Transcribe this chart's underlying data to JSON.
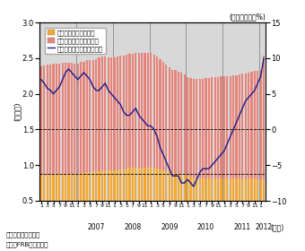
{
  "left_label": "(兆ドル)",
  "right_label": "(前月比年率、%)",
  "xlabel": "(年月)",
  "footnote1": "備考：季節調整値。",
  "footnote2": "資料：FRBから作成。",
  "ylim_left": [
    0.5,
    3.0
  ],
  "ylim_right": [
    -10,
    15
  ],
  "yticks_left": [
    0.5,
    1.0,
    1.5,
    2.0,
    2.5,
    3.0
  ],
  "yticks_right": [
    -10,
    -5,
    0,
    5,
    10,
    15
  ],
  "revolving_color": "#F5A830",
  "non_revolving_color": "#E8837A",
  "line_color": "#1a1a8c",
  "bg_color": "#d8d8d8",
  "legend_labels": [
    "リボルビング（左軸）",
    "非リボルビング（左軸）",
    "合計前月比（年率、右軸）"
  ],
  "start_year": 2006,
  "start_month": 1,
  "revolving": [
    0.87,
    0.87,
    0.87,
    0.87,
    0.88,
    0.88,
    0.88,
    0.88,
    0.88,
    0.88,
    0.88,
    0.88,
    0.88,
    0.89,
    0.89,
    0.9,
    0.9,
    0.91,
    0.91,
    0.92,
    0.93,
    0.93,
    0.93,
    0.93,
    0.93,
    0.93,
    0.94,
    0.94,
    0.95,
    0.96,
    0.96,
    0.97,
    0.97,
    0.97,
    0.97,
    0.97,
    0.97,
    0.96,
    0.95,
    0.94,
    0.93,
    0.92,
    0.91,
    0.9,
    0.89,
    0.88,
    0.87,
    0.86,
    0.85,
    0.84,
    0.83,
    0.82,
    0.82,
    0.82,
    0.82,
    0.82,
    0.82,
    0.82,
    0.81,
    0.81,
    0.81,
    0.81,
    0.81,
    0.81,
    0.81,
    0.81,
    0.81,
    0.81,
    0.81,
    0.81,
    0.81,
    0.8,
    0.8,
    0.8
  ],
  "non_revolving": [
    1.52,
    1.53,
    1.54,
    1.54,
    1.54,
    1.55,
    1.55,
    1.56,
    1.56,
    1.56,
    1.56,
    1.55,
    1.55,
    1.56,
    1.56,
    1.57,
    1.57,
    1.57,
    1.58,
    1.59,
    1.59,
    1.59,
    1.58,
    1.58,
    1.58,
    1.59,
    1.6,
    1.6,
    1.6,
    1.6,
    1.6,
    1.6,
    1.6,
    1.6,
    1.6,
    1.6,
    1.6,
    1.59,
    1.57,
    1.55,
    1.52,
    1.49,
    1.46,
    1.44,
    1.44,
    1.43,
    1.43,
    1.41,
    1.39,
    1.38,
    1.38,
    1.39,
    1.39,
    1.39,
    1.4,
    1.4,
    1.41,
    1.42,
    1.43,
    1.44,
    1.44,
    1.44,
    1.44,
    1.45,
    1.45,
    1.46,
    1.47,
    1.48,
    1.49,
    1.5,
    1.51,
    1.52,
    1.53,
    1.74
  ],
  "yoy_rate": [
    7.0,
    6.5,
    5.8,
    5.5,
    5.0,
    5.5,
    6.0,
    7.0,
    8.0,
    8.5,
    8.0,
    7.5,
    7.0,
    7.5,
    8.0,
    7.5,
    7.0,
    6.0,
    5.5,
    5.5,
    6.0,
    6.5,
    5.5,
    5.0,
    4.5,
    4.0,
    3.5,
    2.5,
    2.0,
    2.0,
    2.5,
    3.0,
    2.0,
    1.5,
    1.0,
    0.5,
    0.5,
    0.0,
    -1.0,
    -2.5,
    -3.5,
    -4.5,
    -5.5,
    -6.5,
    -6.5,
    -6.5,
    -7.5,
    -7.5,
    -7.0,
    -7.5,
    -8.0,
    -7.0,
    -6.0,
    -5.5,
    -5.5,
    -5.5,
    -5.0,
    -4.5,
    -4.0,
    -3.5,
    -3.0,
    -2.0,
    -1.0,
    0.0,
    1.0,
    2.0,
    3.0,
    4.0,
    4.5,
    5.0,
    5.5,
    6.5,
    7.5,
    10.0
  ]
}
